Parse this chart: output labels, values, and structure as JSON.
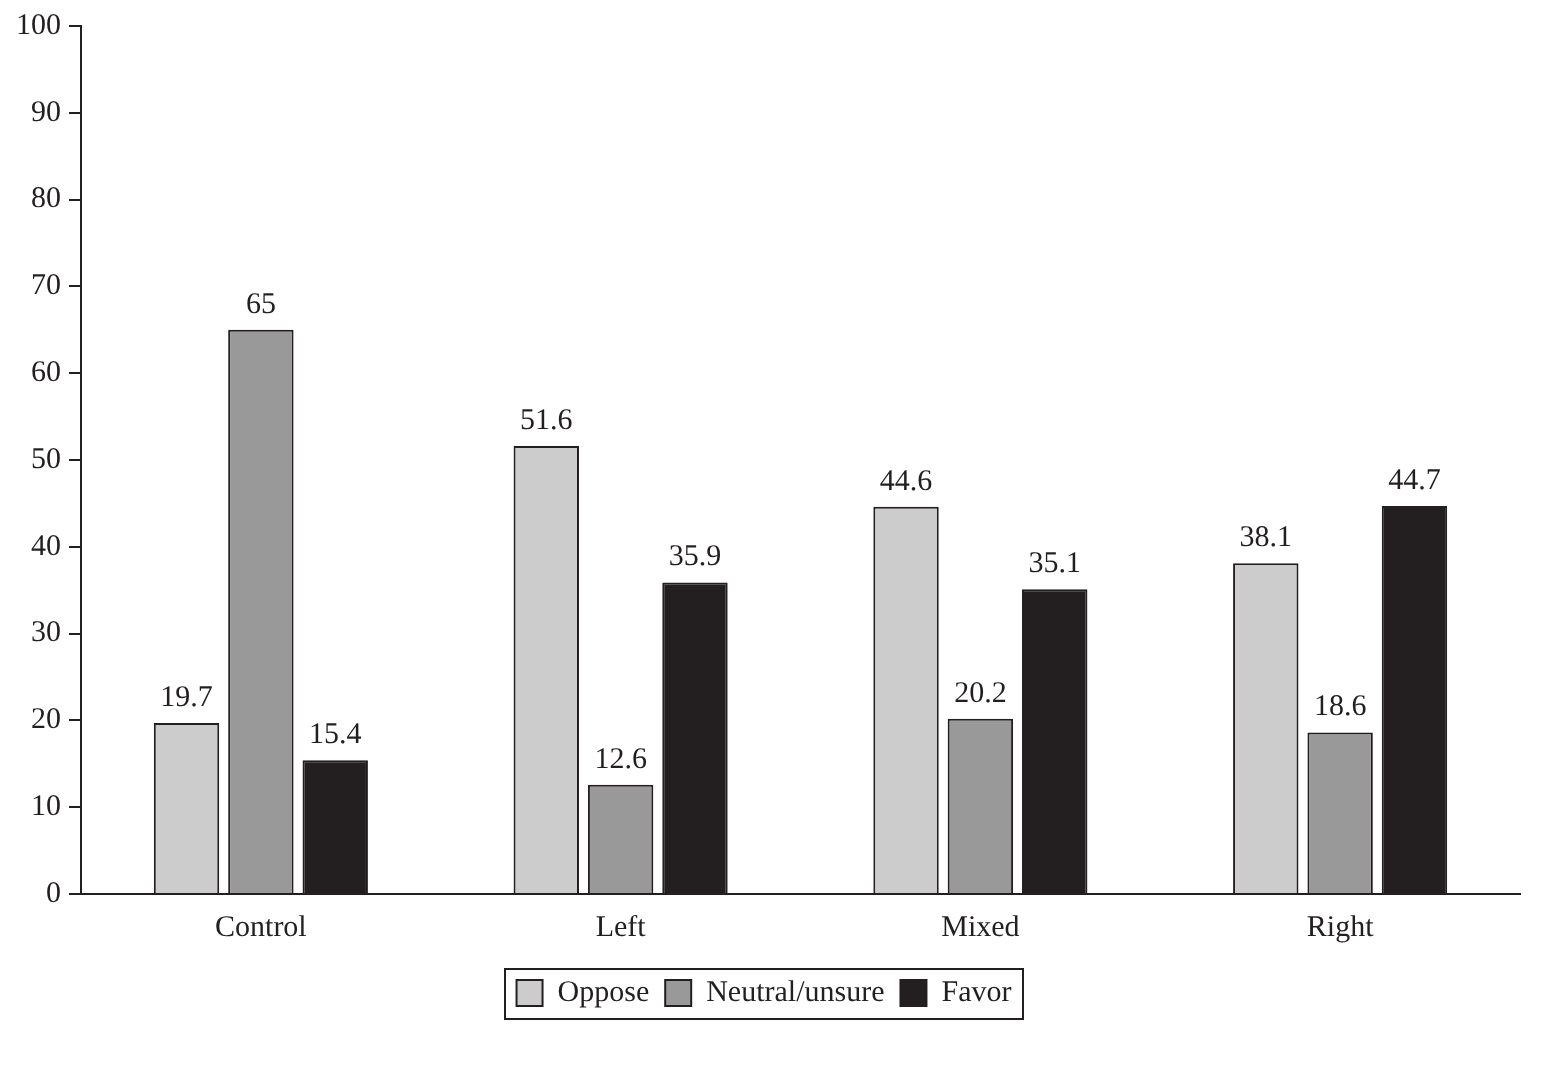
{
  "chart_data": {
    "type": "bar",
    "categories": [
      "Control",
      "Left",
      "Mixed",
      "Right"
    ],
    "series": [
      {
        "name": "Oppose",
        "color": "#cccccc",
        "values": [
          19.7,
          51.6,
          44.6,
          38.1
        ]
      },
      {
        "name": "Neutral/unsure",
        "color": "#999999",
        "values": [
          65,
          12.6,
          20.2,
          18.6
        ]
      },
      {
        "name": "Favor",
        "color": "#231f20",
        "values": [
          15.4,
          35.9,
          35.1,
          44.7
        ]
      }
    ],
    "ylim": [
      0,
      100
    ],
    "yticks": [
      0,
      10,
      20,
      30,
      40,
      50,
      60,
      70,
      80,
      90,
      100
    ],
    "grid": false,
    "legend": "bottom",
    "data_labels": true
  }
}
